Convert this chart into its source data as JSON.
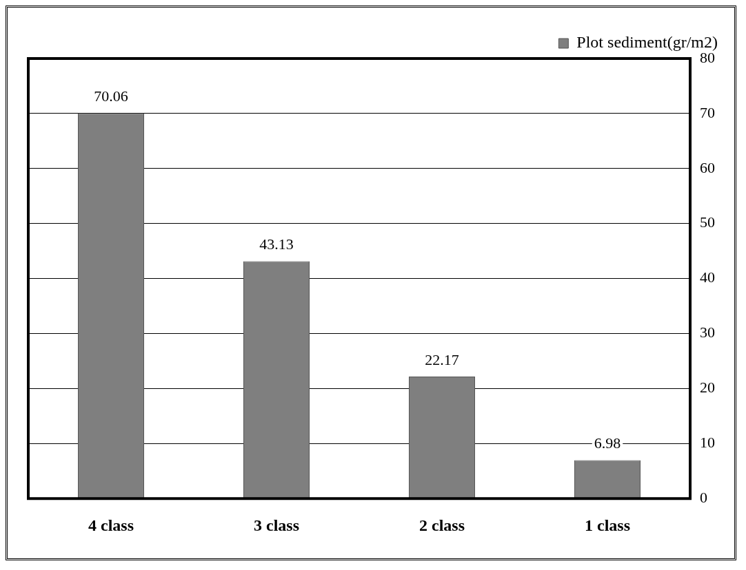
{
  "chart_data": {
    "type": "bar",
    "categories": [
      "4 class",
      "3 class",
      "2 class",
      "1 class"
    ],
    "series": [
      {
        "name": "Plot sediment(gr/m2)",
        "color": "#7f7f7f",
        "values": [
          70.06,
          43.13,
          22.17,
          6.98
        ]
      }
    ],
    "ylim": [
      0,
      80
    ],
    "yticks": [
      0,
      10,
      20,
      30,
      40,
      50,
      60,
      70,
      80
    ],
    "grid": "y",
    "legend": "top right",
    "data_labels": true
  }
}
